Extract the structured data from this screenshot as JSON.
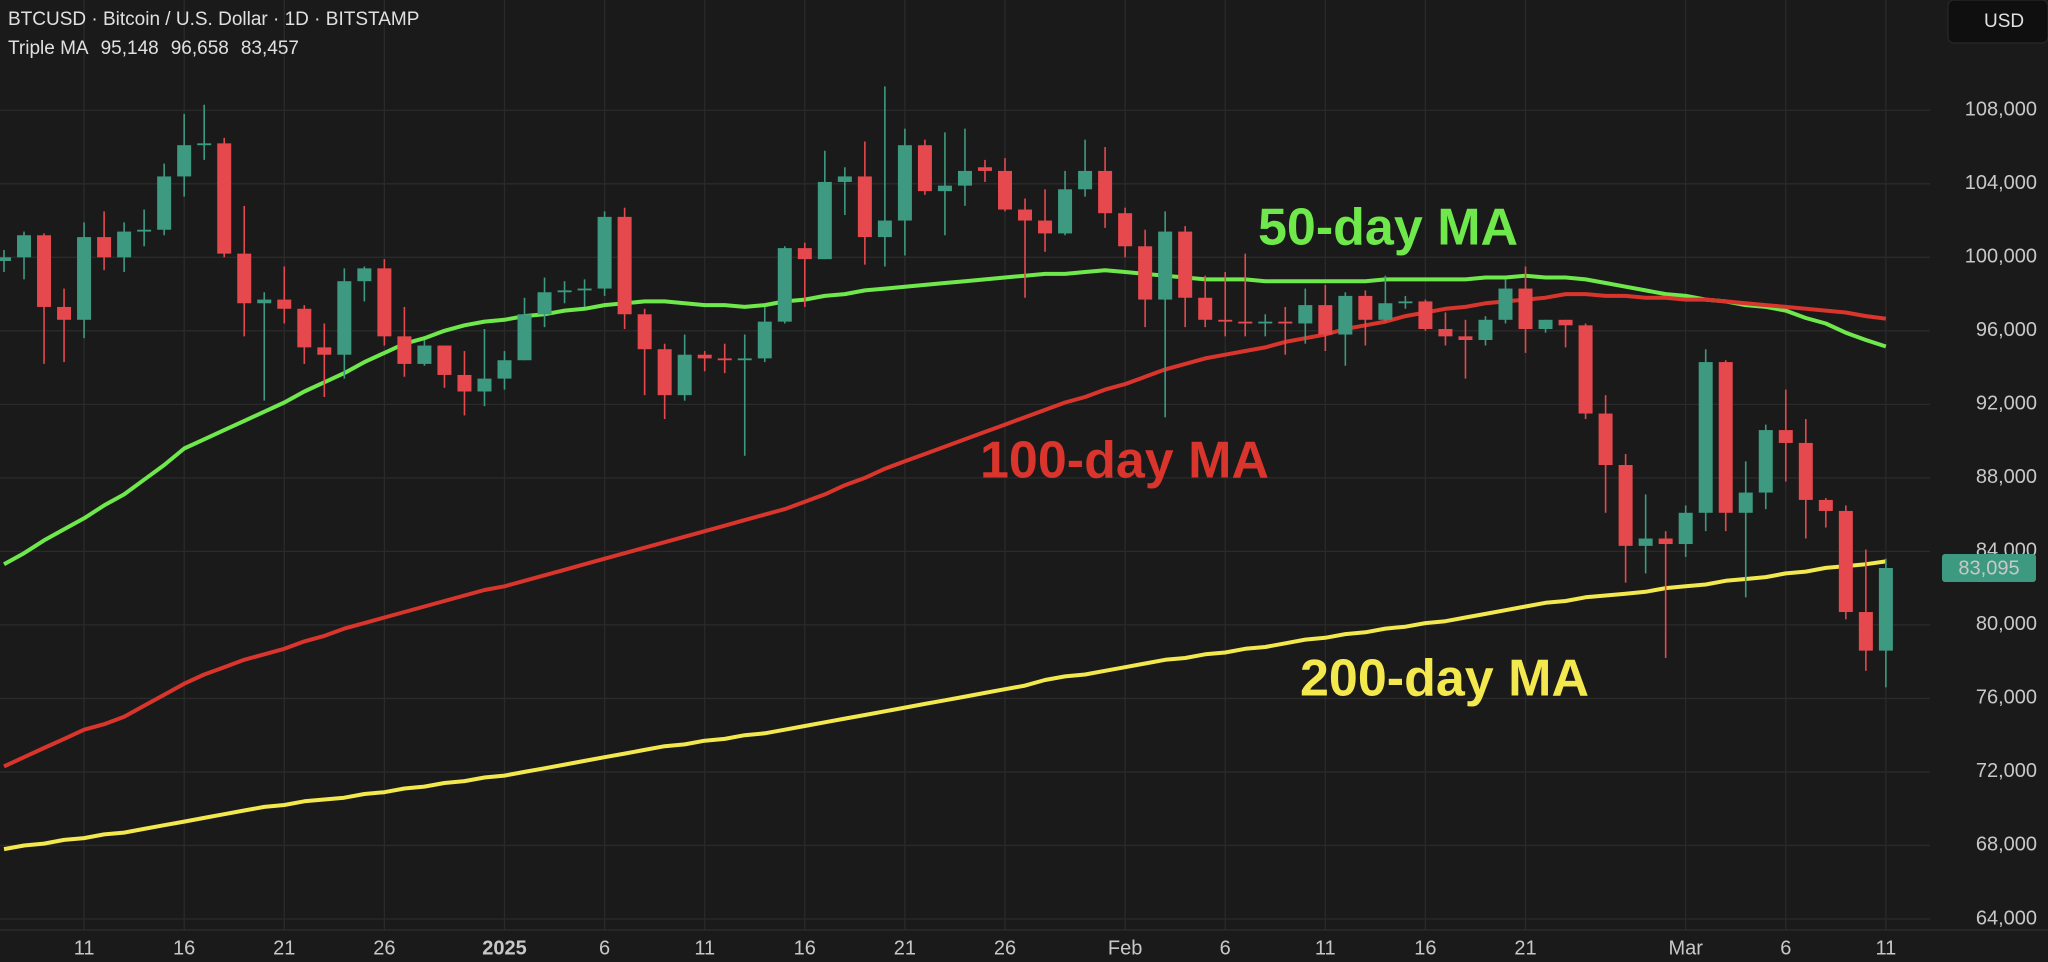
{
  "chart_data": {
    "type": "candlestick",
    "header": {
      "symbol": "BTCUSD · Bitcoin / U.S. Dollar · 1D · BITSTAMP",
      "indicator": "Triple MA"
    },
    "currency": "USD",
    "categories": [
      null,
      null,
      null,
      null,
      "11",
      null,
      null,
      null,
      null,
      "16",
      null,
      null,
      null,
      null,
      "21",
      null,
      null,
      null,
      null,
      "26",
      null,
      null,
      null,
      null,
      null,
      "2025",
      null,
      null,
      null,
      null,
      "6",
      null,
      null,
      null,
      null,
      "11",
      null,
      null,
      null,
      null,
      "16",
      null,
      null,
      null,
      null,
      "21",
      null,
      null,
      null,
      null,
      "26",
      null,
      null,
      null,
      null,
      null,
      "Feb",
      null,
      null,
      null,
      null,
      "6",
      null,
      null,
      null,
      null,
      "11",
      null,
      null,
      null,
      null,
      "16",
      null,
      null,
      null,
      null,
      "21",
      null,
      null,
      null,
      null,
      null,
      null,
      null,
      "Mar",
      null,
      null,
      null,
      null,
      "6",
      null,
      null,
      null,
      null,
      "11"
    ],
    "up_color": "#3d9a80",
    "down_color": "#e5484d",
    "open": [
      99800,
      100000,
      101200,
      97300,
      96600,
      101100,
      100000,
      101400,
      101500,
      104400,
      106100,
      106200,
      100200,
      97500,
      97700,
      97200,
      95100,
      94700,
      98700,
      99400,
      95700,
      94200,
      95200,
      93600,
      92700,
      93400,
      94400,
      96900,
      98100,
      98200,
      98300,
      102200,
      96900,
      95000,
      92500,
      94700,
      94500,
      94400,
      94500,
      96500,
      100500,
      99900,
      104100,
      104400,
      101100,
      102000,
      106100,
      103600,
      103900,
      104900,
      104700,
      102600,
      102000,
      101300,
      103700,
      104700,
      102400,
      100600,
      97700,
      101400,
      97800,
      96600,
      96500,
      96400,
      96500,
      96400,
      97400,
      95800,
      97900,
      96600,
      97500,
      97600,
      96100,
      95700,
      95500,
      96600,
      98300,
      96100,
      96600,
      96300,
      91500,
      88700,
      84300,
      84700,
      84400,
      86100,
      94300,
      86100,
      87200,
      90600,
      89900,
      86800,
      86200,
      80700,
      78600
    ],
    "high": [
      100400,
      101400,
      101300,
      98300,
      101900,
      102500,
      101900,
      102600,
      105100,
      107800,
      108300,
      106500,
      102800,
      98100,
      99500,
      97400,
      96400,
      99400,
      99500,
      99900,
      97300,
      95500,
      95200,
      94900,
      96100,
      94900,
      97800,
      98900,
      98700,
      98800,
      102500,
      102700,
      97200,
      95300,
      95800,
      94900,
      95300,
      95800,
      97300,
      100600,
      100800,
      105800,
      104900,
      106300,
      109300,
      107000,
      106400,
      106800,
      107000,
      105300,
      105400,
      103200,
      103700,
      104700,
      106400,
      106000,
      102700,
      101500,
      102500,
      101700,
      99000,
      99200,
      100200,
      96900,
      97300,
      98300,
      98500,
      98100,
      98200,
      99000,
      97900,
      97700,
      97000,
      96600,
      96800,
      98800,
      99500,
      96600,
      96600,
      96400,
      92500,
      89300,
      87100,
      85100,
      86500,
      95000,
      94400,
      88900,
      90900,
      92800,
      91200,
      86900,
      86500,
      84100,
      83600
    ],
    "low": [
      99200,
      98800,
      94200,
      94300,
      95600,
      99300,
      99200,
      100600,
      101200,
      103300,
      105300,
      100000,
      95700,
      92200,
      96400,
      94200,
      92400,
      93400,
      97600,
      95200,
      93500,
      94100,
      92900,
      91400,
      91900,
      92800,
      94400,
      96200,
      97500,
      97300,
      97900,
      96100,
      92500,
      91200,
      92200,
      93800,
      93700,
      89200,
      94300,
      96400,
      97300,
      99900,
      102300,
      99600,
      99500,
      100100,
      103400,
      101200,
      102800,
      104100,
      102500,
      97800,
      100300,
      101200,
      103300,
      101600,
      100000,
      96200,
      91300,
      96200,
      96200,
      95700,
      95700,
      95700,
      94700,
      95300,
      94900,
      94100,
      95200,
      96500,
      97200,
      96000,
      95200,
      93400,
      95200,
      96400,
      94800,
      95900,
      95100,
      91200,
      86100,
      82300,
      82800,
      78200,
      83700,
      85100,
      85100,
      81500,
      86300,
      87800,
      84700,
      85300,
      80300,
      77500,
      76600
    ],
    "close": [
      100000,
      101200,
      97300,
      96600,
      101100,
      100000,
      101400,
      101500,
      104400,
      106100,
      106200,
      100200,
      97500,
      97700,
      97200,
      95100,
      94700,
      98700,
      99400,
      95700,
      94200,
      95200,
      93600,
      92700,
      93400,
      94400,
      96900,
      98100,
      98200,
      98300,
      102200,
      96900,
      95000,
      92500,
      94700,
      94500,
      94400,
      94500,
      96500,
      100500,
      99900,
      104100,
      104400,
      101100,
      102000,
      106100,
      103600,
      103900,
      104700,
      104700,
      102600,
      102000,
      101300,
      103700,
      104700,
      102400,
      100600,
      97700,
      101400,
      97800,
      96600,
      96500,
      96400,
      96500,
      96400,
      97400,
      95800,
      97900,
      96600,
      97500,
      97600,
      96100,
      95700,
      95500,
      96600,
      98300,
      96100,
      96600,
      96300,
      91500,
      88700,
      84300,
      84700,
      84400,
      86100,
      94300,
      86100,
      87200,
      90600,
      89900,
      86800,
      86200,
      80700,
      78600,
      83095
    ],
    "last_price": {
      "value": 83095,
      "label": "83,095"
    },
    "series": [
      {
        "name": "50-day MA",
        "color": "#6fe84c",
        "last_label": "95,148",
        "values": [
          83300,
          83900,
          84600,
          85200,
          85800,
          86500,
          87100,
          87900,
          88700,
          89600,
          90100,
          90600,
          91100,
          91600,
          92100,
          92700,
          93200,
          93700,
          94300,
          94800,
          95300,
          95600,
          96000,
          96300,
          96500,
          96600,
          96800,
          96900,
          97100,
          97200,
          97400,
          97500,
          97600,
          97600,
          97500,
          97400,
          97400,
          97300,
          97400,
          97600,
          97700,
          97900,
          98000,
          98200,
          98300,
          98400,
          98500,
          98600,
          98700,
          98800,
          98900,
          99000,
          99100,
          99100,
          99200,
          99300,
          99200,
          99100,
          99000,
          98900,
          98800,
          98800,
          98800,
          98700,
          98700,
          98700,
          98700,
          98700,
          98700,
          98800,
          98800,
          98800,
          98800,
          98800,
          98900,
          98900,
          99000,
          98900,
          98900,
          98800,
          98600,
          98400,
          98200,
          98000,
          97900,
          97700,
          97600,
          97400,
          97300,
          97100,
          96700,
          96400,
          95900,
          95500,
          95148
        ]
      },
      {
        "name": "100-day MA",
        "color": "#d9352c",
        "last_label": "96,658",
        "values": [
          72300,
          72800,
          73300,
          73800,
          74300,
          74600,
          75000,
          75600,
          76200,
          76800,
          77300,
          77700,
          78100,
          78400,
          78700,
          79100,
          79400,
          79800,
          80100,
          80400,
          80700,
          81000,
          81300,
          81600,
          81900,
          82100,
          82400,
          82700,
          83000,
          83300,
          83600,
          83900,
          84200,
          84500,
          84800,
          85100,
          85400,
          85700,
          86000,
          86300,
          86700,
          87100,
          87600,
          88000,
          88500,
          88900,
          89300,
          89700,
          90100,
          90500,
          90900,
          91300,
          91700,
          92100,
          92400,
          92800,
          93100,
          93500,
          93900,
          94200,
          94500,
          94700,
          94900,
          95100,
          95400,
          95600,
          95800,
          96100,
          96300,
          96500,
          96800,
          97000,
          97200,
          97300,
          97500,
          97600,
          97700,
          97800,
          98000,
          98000,
          97900,
          97900,
          97800,
          97800,
          97700,
          97700,
          97600,
          97500,
          97400,
          97300,
          97200,
          97100,
          97000,
          96800,
          96658
        ]
      },
      {
        "name": "200-day MA",
        "color": "#f3e84e",
        "last_label": "83,457",
        "values": [
          67800,
          68000,
          68100,
          68300,
          68400,
          68600,
          68700,
          68900,
          69100,
          69300,
          69500,
          69700,
          69900,
          70100,
          70200,
          70400,
          70500,
          70600,
          70800,
          70900,
          71100,
          71200,
          71400,
          71500,
          71700,
          71800,
          72000,
          72200,
          72400,
          72600,
          72800,
          73000,
          73200,
          73400,
          73500,
          73700,
          73800,
          74000,
          74100,
          74300,
          74500,
          74700,
          74900,
          75100,
          75300,
          75500,
          75700,
          75900,
          76100,
          76300,
          76500,
          76700,
          77000,
          77200,
          77300,
          77500,
          77700,
          77900,
          78100,
          78200,
          78400,
          78500,
          78700,
          78800,
          79000,
          79200,
          79300,
          79500,
          79600,
          79800,
          79900,
          80100,
          80200,
          80400,
          80600,
          80800,
          81000,
          81200,
          81300,
          81500,
          81600,
          81700,
          81800,
          82000,
          82100,
          82200,
          82400,
          82500,
          82600,
          82800,
          82900,
          83100,
          83200,
          83300,
          83457
        ]
      }
    ],
    "ylim": [
      63400,
      114000
    ],
    "yticks": [
      {
        "value": 64000,
        "label": "64,000"
      },
      {
        "value": 68000,
        "label": "68,000"
      },
      {
        "value": 72000,
        "label": "72,000"
      },
      {
        "value": 76000,
        "label": "76,000"
      },
      {
        "value": 80000,
        "label": "80,000"
      },
      {
        "value": 84000,
        "label": "84,000"
      },
      {
        "value": 88000,
        "label": "88,000"
      },
      {
        "value": 92000,
        "label": "92,000"
      },
      {
        "value": 96000,
        "label": "96,000"
      },
      {
        "value": 100000,
        "label": "100,000"
      },
      {
        "value": 104000,
        "label": "104,000"
      },
      {
        "value": 108000,
        "label": "108,000"
      }
    ],
    "grid": true
  }
}
